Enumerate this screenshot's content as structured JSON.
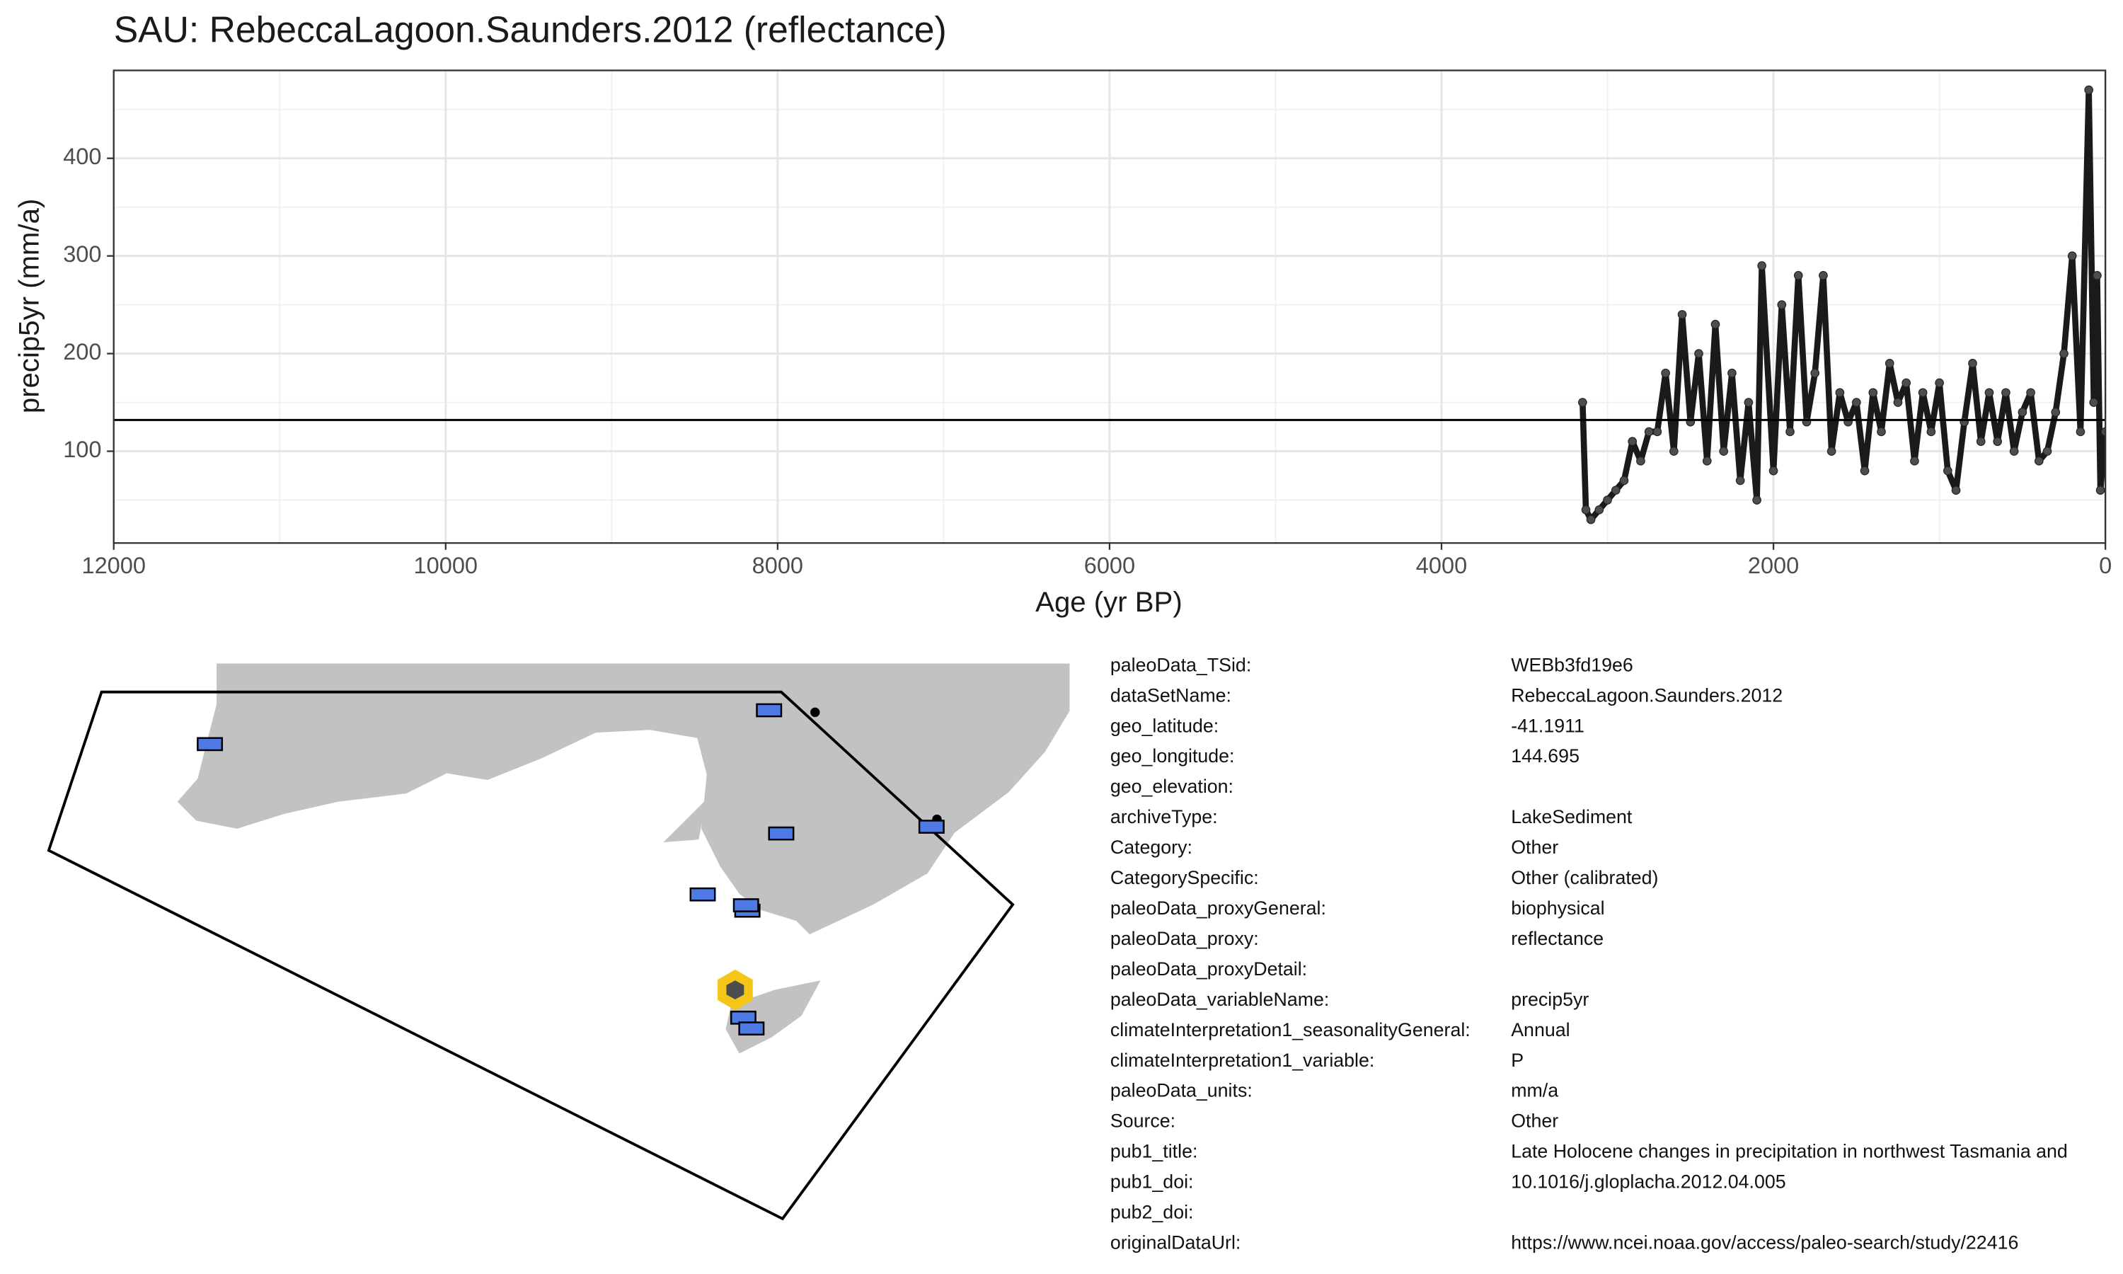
{
  "chart_data": {
    "type": "line",
    "title": "SAU: RebeccaLagoon.Saunders.2012 (reflectance)",
    "xlabel": "Age (yr BP)",
    "ylabel": "precip5yr (mm/a)",
    "xlim": [
      12000,
      0
    ],
    "ylim": [
      6,
      490
    ],
    "xticks": [
      12000,
      10000,
      8000,
      6000,
      4000,
      2000,
      0
    ],
    "yticks": [
      100,
      200,
      300,
      400
    ],
    "grid": true,
    "reference_line": 132,
    "series": [
      {
        "color": "#1a1a1a",
        "point_color": "#4d4d4d",
        "x": [
          3150,
          3130,
          3100,
          3050,
          3000,
          2950,
          2900,
          2850,
          2800,
          2750,
          2700,
          2650,
          2600,
          2550,
          2500,
          2450,
          2400,
          2350,
          2300,
          2250,
          2200,
          2150,
          2100,
          2070,
          2000,
          1950,
          1900,
          1850,
          1800,
          1750,
          1700,
          1650,
          1600,
          1550,
          1500,
          1450,
          1400,
          1350,
          1300,
          1250,
          1200,
          1150,
          1100,
          1050,
          1000,
          950,
          900,
          850,
          800,
          750,
          700,
          650,
          600,
          550,
          500,
          450,
          400,
          350,
          300,
          250,
          200,
          150,
          100,
          70,
          50,
          30,
          0
        ],
        "values": [
          150,
          40,
          30,
          40,
          50,
          60,
          70,
          110,
          90,
          120,
          120,
          180,
          100,
          240,
          130,
          200,
          90,
          230,
          100,
          180,
          70,
          150,
          50,
          290,
          80,
          250,
          120,
          280,
          130,
          180,
          280,
          100,
          160,
          130,
          150,
          80,
          160,
          120,
          190,
          150,
          170,
          90,
          160,
          120,
          170,
          80,
          60,
          130,
          190,
          110,
          160,
          110,
          160,
          100,
          140,
          160,
          90,
          100,
          140,
          200,
          300,
          120,
          470,
          150,
          280,
          60,
          120
        ]
      }
    ]
  },
  "metadata": {
    "rows": [
      [
        "paleoData_TSid:",
        "WEBb3fd19e6"
      ],
      [
        "dataSetName:",
        "RebeccaLagoon.Saunders.2012"
      ],
      [
        "geo_latitude:",
        "-41.1911"
      ],
      [
        "geo_longitude:",
        "144.695"
      ],
      [
        "geo_elevation:"
      ],
      [
        "archiveType:",
        "LakeSediment"
      ],
      [
        "Category:",
        "Other"
      ],
      [
        "CategorySpecific:",
        "Other (calibrated)"
      ],
      [
        "paleoData_proxyGeneral:",
        "biophysical"
      ],
      [
        "paleoData_proxy:",
        "reflectance"
      ],
      [
        "paleoData_proxyDetail:"
      ],
      [
        "paleoData_variableName:",
        "precip5yr"
      ],
      [
        "climateInterpretation1_seasonalityGeneral:",
        "Annual"
      ],
      [
        "climateInterpretation1_variable:",
        "P"
      ],
      [
        "paleoData_units:",
        "mm/a"
      ],
      [
        "Source:",
        "Other"
      ],
      [
        "pub1_title:",
        "Late Holocene changes in precipitation in northwest Tasmania and"
      ],
      [
        "pub1_doi:",
        "10.1016/j.gloplacha.2012.04.005"
      ],
      [
        "pub2_doi:"
      ],
      [
        "originalDataUrl:",
        "https://www.ncei.noaa.gov/access/paleo-search/study/22416"
      ]
    ]
  }
}
